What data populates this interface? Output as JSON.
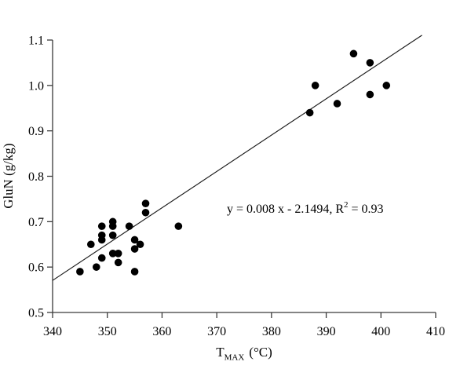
{
  "colors": {
    "background": "#ffffff",
    "axis": "#3a3a3a",
    "marker": "#000000",
    "trendline": "#1a1a1a",
    "text": "#000000"
  },
  "chart_data": {
    "type": "scatter",
    "title": "",
    "ylabel": "GluN (g/kg)",
    "xlabel": {
      "base": "T",
      "sub": "MAX",
      "unit": "(°C)"
    },
    "xlim": [
      340,
      410
    ],
    "ylim": [
      0.5,
      1.1
    ],
    "xticks": [
      340,
      350,
      360,
      370,
      380,
      390,
      400,
      410
    ],
    "xtick_labels": [
      "340",
      "350",
      "360",
      "370",
      "380",
      "390",
      "400",
      "410"
    ],
    "yticks": [
      0.5,
      0.6,
      0.7,
      0.8,
      0.9,
      1.0,
      1.1
    ],
    "ytick_labels": [
      "0.5",
      "0.6",
      "0.7",
      "0.8",
      "0.9",
      "1.0",
      "1.1"
    ],
    "grid": false,
    "legend": null,
    "marker": {
      "shape": "circle",
      "color": "#000000"
    },
    "points": [
      [
        345,
        0.59
      ],
      [
        347,
        0.65
      ],
      [
        348,
        0.6
      ],
      [
        349,
        0.62
      ],
      [
        349,
        0.66
      ],
      [
        349,
        0.67
      ],
      [
        349,
        0.69
      ],
      [
        351,
        0.63
      ],
      [
        351,
        0.67
      ],
      [
        351,
        0.69
      ],
      [
        351,
        0.7
      ],
      [
        352,
        0.61
      ],
      [
        352,
        0.63
      ],
      [
        354,
        0.69
      ],
      [
        355,
        0.59
      ],
      [
        355,
        0.64
      ],
      [
        355,
        0.66
      ],
      [
        356,
        0.65
      ],
      [
        357,
        0.72
      ],
      [
        357,
        0.74
      ],
      [
        363,
        0.69
      ],
      [
        387,
        0.94
      ],
      [
        388,
        1.0
      ],
      [
        392,
        0.96
      ],
      [
        395,
        1.07
      ],
      [
        398,
        0.98
      ],
      [
        398,
        1.05
      ],
      [
        401,
        1.0
      ]
    ],
    "trendline": {
      "slope": 0.008,
      "intercept": -2.1494,
      "x_start": 340,
      "x_end": 407.5
    },
    "annotation": {
      "prefix": "y = 0.008 x - 2.1494, R",
      "sup": "2",
      "suffix": " = 0.93"
    }
  }
}
